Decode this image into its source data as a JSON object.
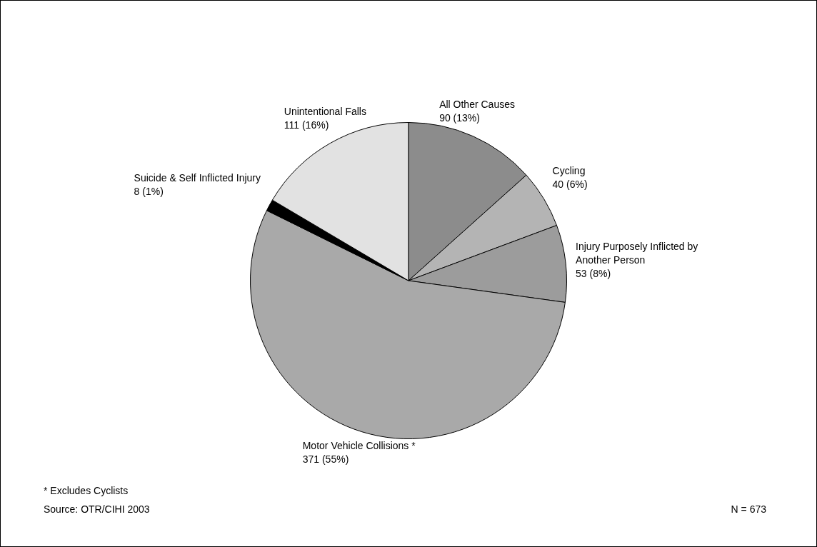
{
  "chart_data": {
    "type": "pie",
    "categories": [
      "All Other Causes",
      "Cycling",
      "Injury Purposely Inflicted by Another Person",
      "Motor Vehicle Collisions *",
      "Suicide & Self Inflicted Injury",
      "Unintentional Falls"
    ],
    "values": [
      90,
      40,
      53,
      371,
      8,
      111
    ],
    "value_labels": [
      "90 (13%)",
      "40 (6%)",
      "53 (8%)",
      "371 (55%)",
      "8 (1%)",
      "111 (16%)"
    ],
    "colors": [
      "#8c8c8c",
      "#b4b4b4",
      "#9c9c9c",
      "#a9a9a9",
      "#000000",
      "#e2e2e2"
    ],
    "legend": false,
    "annotations": [
      "* Excludes Cyclists",
      "Source: OTR/CIHI 2003",
      "N = 673"
    ]
  }
}
